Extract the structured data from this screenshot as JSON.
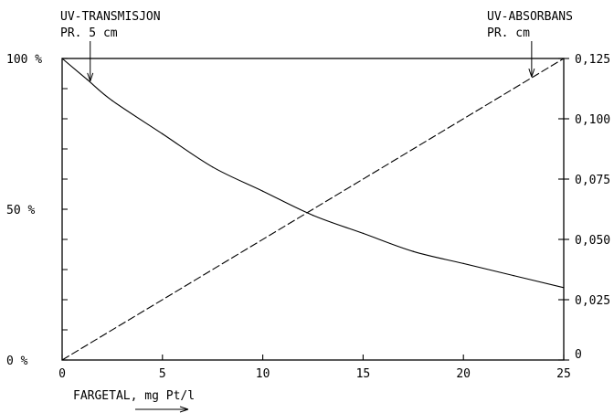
{
  "chart_data": {
    "type": "line",
    "x_label": "FARGETAL, mg Pt/l",
    "x_ticks": [
      "0",
      "5",
      "10",
      "15",
      "20",
      "25"
    ],
    "xlim": [
      0,
      25
    ],
    "y_left": {
      "ticks": [
        {
          "value": 0,
          "label": "0 %"
        },
        {
          "value": 50,
          "label": "50 %"
        },
        {
          "value": 100,
          "label": "100 %"
        }
      ],
      "minor_ticks": [
        10,
        20,
        30,
        40,
        60,
        70,
        80,
        90
      ],
      "lim": [
        0,
        100
      ]
    },
    "y_right": {
      "ticks": [
        {
          "value": 0,
          "label": "0"
        },
        {
          "value": 0.025,
          "label": "0,025"
        },
        {
          "value": 0.05,
          "label": "0,050"
        },
        {
          "value": 0.075,
          "label": "0,075"
        },
        {
          "value": 0.1,
          "label": "0,100"
        },
        {
          "value": 0.125,
          "label": "0,125"
        }
      ],
      "lim": [
        0,
        0.125
      ]
    },
    "series": [
      {
        "label_line1": "UV-TRANSMISJON",
        "label_line2": "PR. 5 cm",
        "axis": "left",
        "style": "solid",
        "x": [
          0,
          1.25,
          2.5,
          5,
          7.5,
          10,
          12.5,
          15,
          17.5,
          20,
          22.5,
          25
        ],
        "y": [
          100,
          93,
          86,
          75,
          64,
          56,
          48,
          42,
          36,
          32,
          28,
          24
        ],
        "arrow_at_x": 1.4
      },
      {
        "label_line1": "UV-ABSORBANS",
        "label_line2": "PR. cm",
        "axis": "right",
        "style": "dashed",
        "x": [
          0,
          25
        ],
        "y": [
          0,
          0.125
        ],
        "arrow_at_x": 23.4
      }
    ]
  }
}
